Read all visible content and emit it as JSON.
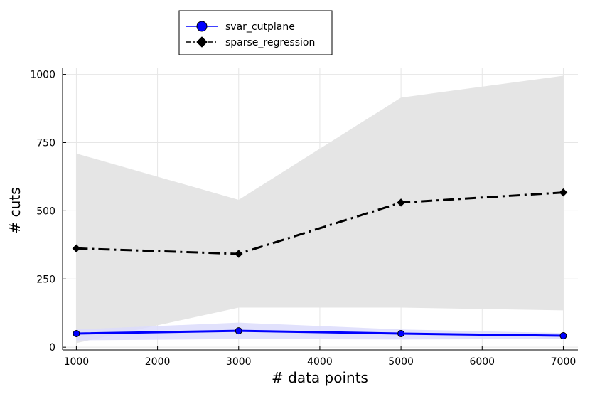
{
  "chart_data": {
    "type": "line",
    "xlabel": "# data points",
    "ylabel": "# cuts",
    "xlim": [
      830,
      7180
    ],
    "ylim": [
      -10,
      1025
    ],
    "xticks": [
      1000,
      2000,
      3000,
      4000,
      5000,
      6000,
      7000
    ],
    "yticks": [
      0,
      250,
      500,
      750,
      1000
    ],
    "grid": true,
    "legend_position": "top-center",
    "x": [
      1000,
      3000,
      5000,
      7000
    ],
    "series": [
      {
        "name": "svar_cutplane",
        "values": [
          50,
          60,
          50,
          42
        ],
        "band_upper": [
          65,
          90,
          65,
          52
        ],
        "band_lower": [
          25,
          30,
          28,
          30
        ],
        "color": "#0000ff",
        "band_color": "#dcdcfb",
        "line_style": "solid",
        "marker": "circle"
      },
      {
        "name": "sparse_regression",
        "values": [
          362,
          342,
          530,
          567
        ],
        "band_upper": [
          710,
          540,
          915,
          995
        ],
        "band_lower": [
          15,
          145,
          145,
          135
        ],
        "color": "#000000",
        "band_color": "#e5e5e5",
        "line_style": "dashdot",
        "marker": "diamond"
      }
    ]
  }
}
